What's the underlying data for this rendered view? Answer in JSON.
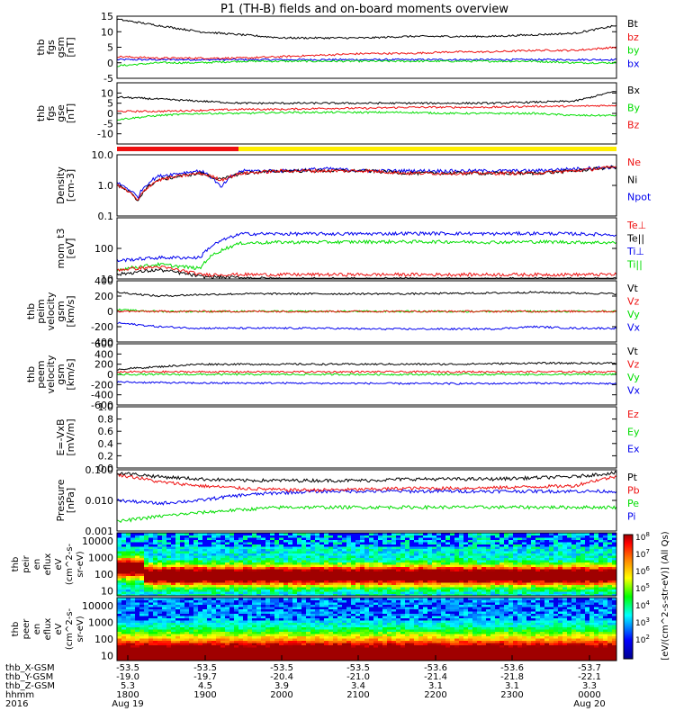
{
  "title": "P1  (TH-B) fields and on-board moments overview",
  "colors": {
    "black": "#000000",
    "red": "#ee1111",
    "green": "#00dd00",
    "blue": "#0000ee",
    "yellow": "#ffee00"
  },
  "x_axis": {
    "rows": [
      {
        "label": "thb_X-GSM",
        "values": [
          "-53.5",
          "-53.5",
          "-53.5",
          "-53.5",
          "-53.6",
          "-53.6",
          "-53.7"
        ]
      },
      {
        "label": "thb_Y-GSM",
        "values": [
          "-19.0",
          "-19.7",
          "-20.4",
          "-21.0",
          "-21.4",
          "-21.8",
          "-22.1"
        ]
      },
      {
        "label": "thb_Z-GSM",
        "values": [
          "5.3",
          "4.5",
          "3.9",
          "3.4",
          "3.1",
          "3.1",
          "3.3"
        ]
      },
      {
        "label": "hhmm",
        "values": [
          "1800",
          "1900",
          "2000",
          "2100",
          "2200",
          "2300",
          "0000"
        ]
      },
      {
        "label": "2016",
        "values": [
          "Aug 19",
          "",
          "",
          "",
          "",
          "",
          "Aug 20"
        ]
      }
    ]
  },
  "colorbar_label": "[eV/(cm^2-s-str-eV)] (All Qs)",
  "colorbar_ticks": [
    "10^8",
    "10^7",
    "10^6",
    "10^5",
    "10^4",
    "10^3",
    "10^2"
  ],
  "chart_data": [
    {
      "type": "line",
      "name": "fgs_gsm",
      "ylabel": "thb fgs gsm [nT]",
      "ylim": [
        -5,
        15
      ],
      "yticks": [
        "15",
        "10",
        "5",
        "0",
        "-5"
      ],
      "series": [
        {
          "name": "Bt",
          "color": "black"
        },
        {
          "name": "bz",
          "color": "red"
        },
        {
          "name": "by",
          "color": "green"
        },
        {
          "name": "bx",
          "color": "blue"
        }
      ],
      "x": [
        0,
        0.5,
        1,
        1.5,
        2,
        2.5,
        3,
        3.5,
        4,
        4.5,
        5,
        5.5,
        6
      ],
      "values": {
        "Bt": [
          14,
          12,
          10,
          9,
          8,
          8,
          8,
          8.5,
          8.5,
          8.5,
          9,
          9.5,
          12
        ],
        "bz": [
          2,
          1.5,
          1.5,
          1.5,
          2,
          2.5,
          3,
          3,
          3.5,
          3.5,
          4,
          4,
          5
        ],
        "by": [
          -1,
          0,
          0,
          0.5,
          0.5,
          0.5,
          0.5,
          0.5,
          0.5,
          0.5,
          0.5,
          0,
          0
        ],
        "bx": [
          1,
          1,
          1,
          1,
          1,
          1,
          1,
          1,
          1,
          1,
          1,
          1,
          1
        ]
      }
    },
    {
      "type": "line",
      "name": "fgs_gse",
      "ylabel": "thb fgs gse [nT]",
      "ylim": [
        -15,
        15
      ],
      "yticks": [
        "10",
        "5",
        "0",
        "-5",
        "-10"
      ],
      "series": [
        {
          "name": "Bx",
          "color": "black"
        },
        {
          "name": "By",
          "color": "green"
        },
        {
          "name": "Bz",
          "color": "red"
        }
      ],
      "x": [
        0,
        0.5,
        1,
        1.5,
        2,
        2.5,
        3,
        3.5,
        4,
        4.5,
        5,
        5.5,
        6
      ],
      "values": {
        "Bx": [
          8,
          7,
          6,
          5,
          5,
          5,
          5,
          5,
          5,
          5,
          5.5,
          6,
          11
        ],
        "By": [
          -3,
          -1,
          0,
          0,
          0.5,
          0.5,
          0.5,
          0.5,
          0,
          0,
          0,
          -1,
          -1
        ],
        "Bz": [
          1,
          1,
          1.5,
          2,
          2,
          2.5,
          2.5,
          3,
          3,
          3,
          3.5,
          3.5,
          4
        ]
      }
    },
    {
      "type": "line",
      "name": "density",
      "ylabel": "Density [cm-3]",
      "yscale": "log",
      "ylim": [
        0.1,
        10
      ],
      "yticks": [
        "10.0",
        "1.0",
        "0.1"
      ],
      "series": [
        {
          "name": "Ne",
          "color": "red"
        },
        {
          "name": "Ni",
          "color": "black"
        },
        {
          "name": "Npot",
          "color": "blue"
        }
      ],
      "x": [
        0,
        0.25,
        0.5,
        0.75,
        1,
        1.25,
        1.5,
        2,
        2.5,
        3,
        3.5,
        4,
        4.5,
        5,
        5.5,
        6
      ],
      "values": {
        "Ne": [
          1.0,
          0.3,
          1.5,
          2.0,
          2.5,
          1.5,
          2.5,
          3,
          3,
          3,
          2.5,
          2.5,
          2.5,
          2.5,
          3,
          4
        ],
        "Ni": [
          1.0,
          0.3,
          1.5,
          2.0,
          2.5,
          1.5,
          2.5,
          3,
          3,
          3,
          2.5,
          2.5,
          2.5,
          2.5,
          3,
          4
        ],
        "Npot": [
          1.2,
          0.4,
          2,
          2.5,
          3,
          0.8,
          3,
          3,
          3.5,
          3,
          3,
          3,
          3,
          3,
          3.5,
          4
        ]
      }
    },
    {
      "type": "line",
      "name": "temperature",
      "ylabel": "mom_t3 [eV]",
      "yscale": "log",
      "ylim": [
        10,
        1000
      ],
      "yticks": [
        "100",
        "10"
      ],
      "series": [
        {
          "name": "Te⊥",
          "color": "red"
        },
        {
          "name": "Te||",
          "color": "black"
        },
        {
          "name": "Ti⊥",
          "color": "blue"
        },
        {
          "name": "Ti||",
          "color": "green"
        }
      ],
      "x": [
        0,
        0.5,
        1,
        1.5,
        2,
        2.5,
        3,
        3.5,
        4,
        4.5,
        5,
        5.5,
        6
      ],
      "values": {
        "Te⊥": [
          20,
          25,
          14,
          14,
          14,
          14,
          14,
          14,
          14,
          14,
          14,
          14,
          14
        ],
        "Te||": [
          14,
          20,
          12,
          11,
          10,
          10,
          10,
          10,
          10,
          10,
          10,
          10,
          10
        ],
        "Ti⊥": [
          40,
          50,
          50,
          300,
          300,
          300,
          300,
          310,
          310,
          300,
          310,
          300,
          280
        ],
        "Ti||": [
          20,
          30,
          22,
          150,
          160,
          160,
          165,
          165,
          165,
          160,
          165,
          160,
          155
        ]
      }
    },
    {
      "type": "line",
      "name": "peim_velocity",
      "ylabel": "thb peim velocity gsm [km/s]",
      "ylim": [
        -400,
        400
      ],
      "yticks": [
        "400",
        "200",
        "0",
        "-200",
        "-400"
      ],
      "series": [
        {
          "name": "Vt",
          "color": "black"
        },
        {
          "name": "Vz",
          "color": "red"
        },
        {
          "name": "Vy",
          "color": "green"
        },
        {
          "name": "Vx",
          "color": "blue"
        }
      ],
      "x": [
        0,
        0.5,
        1,
        1.5,
        2,
        2.5,
        3,
        3.5,
        4,
        4.5,
        5,
        5.5,
        6
      ],
      "values": {
        "Vt": [
          250,
          200,
          220,
          230,
          230,
          230,
          230,
          230,
          235,
          240,
          250,
          240,
          230
        ],
        "Vz": [
          0,
          0,
          0,
          0,
          0,
          0,
          0,
          0,
          0,
          0,
          0,
          0,
          0
        ],
        "Vy": [
          20,
          0,
          0,
          0,
          0,
          0,
          0,
          0,
          0,
          0,
          0,
          0,
          0
        ],
        "Vx": [
          -150,
          -200,
          -220,
          -220,
          -220,
          -220,
          -230,
          -230,
          -230,
          -230,
          -200,
          -220,
          -220
        ]
      }
    },
    {
      "type": "line",
      "name": "peem_velocity",
      "ylabel": "thb peem velocity gsm [km/s]",
      "ylim": [
        -600,
        600
      ],
      "yticks": [
        "600",
        "400",
        "200",
        "0",
        "-200",
        "-400",
        "-600"
      ],
      "series": [
        {
          "name": "Vt",
          "color": "black"
        },
        {
          "name": "Vz",
          "color": "red"
        },
        {
          "name": "Vy",
          "color": "green"
        },
        {
          "name": "Vx",
          "color": "blue"
        }
      ],
      "x": [
        0,
        0.5,
        1,
        1.5,
        2,
        2.5,
        3,
        3.5,
        4,
        4.5,
        5,
        5.5,
        6
      ],
      "values": {
        "Vt": [
          100,
          150,
          200,
          200,
          200,
          200,
          200,
          200,
          200,
          210,
          220,
          220,
          220
        ],
        "Vz": [
          50,
          50,
          50,
          50,
          50,
          50,
          50,
          50,
          50,
          50,
          50,
          50,
          50
        ],
        "Vy": [
          0,
          0,
          0,
          0,
          0,
          0,
          0,
          0,
          0,
          0,
          0,
          0,
          0
        ],
        "Vx": [
          -150,
          -160,
          -170,
          -170,
          -170,
          -175,
          -175,
          -180,
          -180,
          -180,
          -170,
          -180,
          -180
        ]
      }
    },
    {
      "type": "line",
      "name": "efield",
      "ylabel": "E=-VxB [mV/m]",
      "ylim": [
        0,
        1
      ],
      "yticks": [
        "1.0",
        "0.8",
        "0.6",
        "0.4",
        "0.2",
        "0.0"
      ],
      "series": [
        {
          "name": "Ez",
          "color": "red"
        },
        {
          "name": "Ey",
          "color": "green"
        },
        {
          "name": "Ex",
          "color": "blue"
        }
      ]
    },
    {
      "type": "line",
      "name": "pressure",
      "ylabel": "Pressure [nPa]",
      "yscale": "log",
      "ylim": [
        0.001,
        0.1
      ],
      "yticks": [
        "0.100",
        "0.010",
        "0.001"
      ],
      "series": [
        {
          "name": "Pt",
          "color": "black"
        },
        {
          "name": "Pb",
          "color": "red"
        },
        {
          "name": "Pe",
          "color": "green"
        },
        {
          "name": "Pi",
          "color": "blue"
        }
      ],
      "x": [
        0,
        0.5,
        1,
        1.5,
        2,
        2.5,
        3,
        3.5,
        4,
        4.5,
        5,
        5.5,
        6
      ],
      "values": {
        "Pt": [
          0.08,
          0.06,
          0.05,
          0.045,
          0.045,
          0.045,
          0.045,
          0.05,
          0.05,
          0.05,
          0.055,
          0.06,
          0.08
        ],
        "Pb": [
          0.07,
          0.04,
          0.03,
          0.025,
          0.022,
          0.022,
          0.023,
          0.025,
          0.025,
          0.026,
          0.028,
          0.03,
          0.06
        ],
        "Pe": [
          0.002,
          0.003,
          0.004,
          0.005,
          0.006,
          0.006,
          0.006,
          0.006,
          0.006,
          0.006,
          0.006,
          0.006,
          0.006
        ],
        "Pi": [
          0.01,
          0.008,
          0.01,
          0.015,
          0.018,
          0.02,
          0.02,
          0.02,
          0.02,
          0.02,
          0.02,
          0.02,
          0.02
        ]
      }
    },
    {
      "type": "heatmap",
      "name": "peir_spectrogram",
      "ylabel": "thb peir en eflux eV (cm^2-s-sr-eV)",
      "yscale": "log",
      "ylim": [
        5,
        30000
      ],
      "yticks": [
        "10000",
        "1000",
        "100",
        "10"
      ]
    },
    {
      "type": "heatmap",
      "name": "peer_spectrogram",
      "ylabel": "thb peer en eflux eV (cm^2-s-sr-eV)",
      "yscale": "log",
      "ylim": [
        5,
        30000
      ],
      "yticks": [
        "10000",
        "1000",
        "100",
        "10"
      ]
    }
  ]
}
